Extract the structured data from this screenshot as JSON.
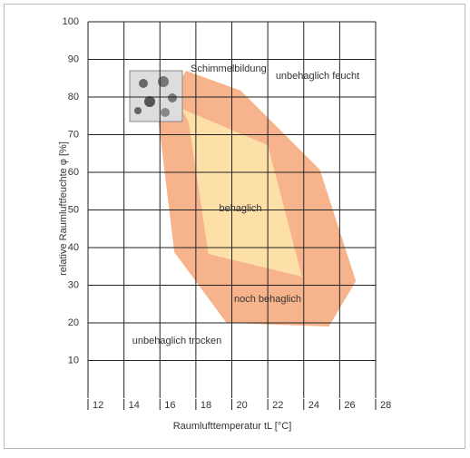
{
  "chart_data": {
    "type": "polygon",
    "x_label": "Raumlufttemperatur tL [°C]",
    "y_label": "relative Raumluftfeuchte  φ [%]",
    "xlim": [
      12,
      28
    ],
    "xticks": [
      12,
      14,
      16,
      18,
      20,
      22,
      24,
      26,
      28
    ],
    "ylim": [
      0,
      100
    ],
    "yticks": [
      10,
      20,
      30,
      40,
      50,
      60,
      70,
      80,
      90,
      100
    ],
    "grid": true,
    "series": [
      {
        "name": "noch behaglich",
        "color": "#f7b48c",
        "x": [
          17.45,
          20.5,
          24.9,
          26.9,
          25.4,
          19.7,
          16.8,
          15.9
        ],
        "y": [
          87,
          81.7,
          60.7,
          31.1,
          19,
          20,
          38.8,
          74.5
        ]
      },
      {
        "name": "behaglich",
        "color": "#fde0a8",
        "x": [
          17.2,
          22,
          23.9,
          18.7,
          17.6
        ],
        "y": [
          76.9,
          67.2,
          32.3,
          38.3,
          73.3
        ]
      }
    ],
    "annotations": [
      "Schimmelbildung",
      "unbehaglich feucht",
      "unbehaglich trocken"
    ]
  }
}
